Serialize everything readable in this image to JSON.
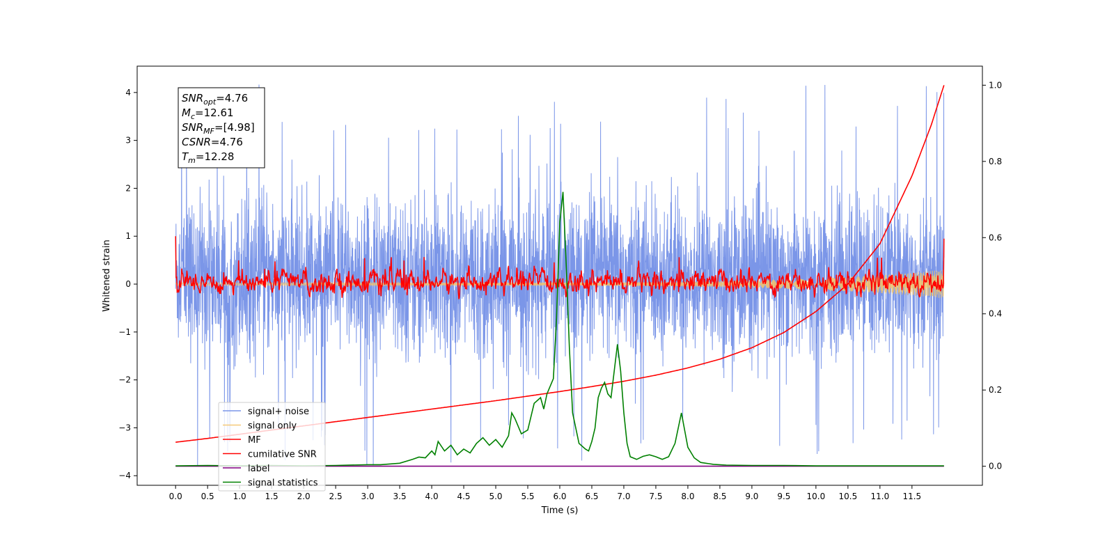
{
  "chart_data": {
    "type": "line",
    "title": "",
    "xlabel": "Time (s)",
    "ylabel": "Whitened strain",
    "xlim": [
      -0.6,
      12.6
    ],
    "ylim": [
      -4.2,
      4.55
    ],
    "y2lim": [
      -0.05,
      1.05
    ],
    "xticks": [
      0.0,
      0.5,
      1.0,
      1.5,
      2.0,
      2.5,
      3.0,
      3.5,
      4.0,
      4.5,
      5.0,
      5.5,
      6.0,
      6.5,
      7.0,
      7.5,
      8.0,
      8.5,
      9.0,
      9.5,
      10.0,
      10.5,
      11.0,
      11.5
    ],
    "xtick_labels": [
      "0.0",
      "0.5",
      "1.0",
      "1.5",
      "2.0",
      "2.5",
      "3.0",
      "3.5",
      "4.0",
      "4.5",
      "5.0",
      "5.5",
      "6.0",
      "6.5",
      "7.0",
      "7.5",
      "8.0",
      "8.5",
      "9.0",
      "9.5",
      "10.0",
      "10.5",
      "11.0",
      "11.5"
    ],
    "yticks": [
      4,
      3,
      2,
      1,
      0,
      -1,
      -2,
      -3,
      -4
    ],
    "ytick_labels": [
      "4",
      "3",
      "2",
      "1",
      "0",
      "−1",
      "−2",
      "−3",
      "−4"
    ],
    "y2ticks": [
      1.0,
      0.8,
      0.6,
      0.4,
      0.2,
      0.0
    ],
    "y2tick_labels": [
      "1.0",
      "0.8",
      "0.6",
      "0.4",
      "0.2",
      "0.0"
    ],
    "grid": false,
    "legend_placement": "lower-left",
    "annotation": {
      "lines": [
        {
          "base": "SNR",
          "sub": "opt",
          "value": "=4.76"
        },
        {
          "base": "M",
          "sub": "c",
          "value": "=12.61"
        },
        {
          "base": "SNR",
          "sub": "MF",
          "value": "=[4.98]"
        },
        {
          "base": "CSNR",
          "sub": "",
          "value": "=4.76"
        },
        {
          "base": "T",
          "sub": "m",
          "value": "=12.28"
        }
      ]
    },
    "series": [
      {
        "name": "signal+ noise",
        "color": "#7b96e8",
        "axis": "left",
        "style": "noise",
        "x_range": [
          0.0,
          12.0
        ],
        "y_band": [
          -1.3,
          1.6
        ],
        "y_extremes": [
          -3.8,
          4.2
        ]
      },
      {
        "name": "signal only",
        "color": "#f5c46a",
        "axis": "left",
        "style": "chirp",
        "x_range": [
          0.0,
          12.0
        ],
        "amplitude_start": 0.03,
        "amplitude_end": 0.3
      },
      {
        "name": "MF",
        "color": "#ff0000",
        "axis": "left",
        "style": "matched-filter",
        "x_range": [
          0.0,
          12.0
        ],
        "y_band": [
          -0.35,
          0.6
        ],
        "y_start": 1.0,
        "y_end": 0.95
      },
      {
        "name": "cumilative SNR",
        "color": "#ff0000",
        "axis": "right",
        "x": [
          0.0,
          0.5,
          1.0,
          1.5,
          2.0,
          2.5,
          3.0,
          3.5,
          4.0,
          4.5,
          5.0,
          5.5,
          6.0,
          6.5,
          7.0,
          7.5,
          8.0,
          8.5,
          9.0,
          9.5,
          10.0,
          10.5,
          11.0,
          11.5,
          11.8,
          12.0
        ],
        "values": [
          0.063,
          0.073,
          0.084,
          0.095,
          0.106,
          0.117,
          0.128,
          0.139,
          0.15,
          0.161,
          0.172,
          0.184,
          0.196,
          0.209,
          0.223,
          0.239,
          0.258,
          0.281,
          0.311,
          0.351,
          0.406,
          0.478,
          0.584,
          0.762,
          0.895,
          1.0
        ]
      },
      {
        "name": "label",
        "color": "#800080",
        "axis": "right",
        "x": [
          0.0,
          12.0
        ],
        "values": [
          0.0,
          0.0
        ]
      },
      {
        "name": "signal statistics",
        "color": "#008000",
        "axis": "right",
        "x": [
          0.0,
          0.5,
          1.0,
          1.5,
          2.0,
          2.5,
          3.0,
          3.2,
          3.5,
          3.7,
          3.8,
          3.9,
          4.0,
          4.05,
          4.1,
          4.2,
          4.3,
          4.4,
          4.5,
          4.6,
          4.7,
          4.8,
          4.9,
          5.0,
          5.1,
          5.2,
          5.25,
          5.3,
          5.4,
          5.5,
          5.6,
          5.7,
          5.75,
          5.8,
          5.9,
          5.95,
          6.0,
          6.05,
          6.1,
          6.15,
          6.2,
          6.3,
          6.4,
          6.45,
          6.5,
          6.55,
          6.6,
          6.65,
          6.7,
          6.75,
          6.8,
          6.9,
          6.95,
          7.0,
          7.05,
          7.1,
          7.2,
          7.3,
          7.4,
          7.5,
          7.6,
          7.7,
          7.8,
          7.9,
          7.95,
          8.0,
          8.1,
          8.2,
          8.4,
          8.6,
          9.0,
          9.5,
          10.0,
          11.0,
          12.0
        ],
        "values": [
          0.001,
          0.002,
          0.001,
          0.002,
          0.001,
          0.002,
          0.004,
          0.004,
          0.008,
          0.018,
          0.024,
          0.022,
          0.04,
          0.03,
          0.065,
          0.04,
          0.055,
          0.03,
          0.045,
          0.035,
          0.06,
          0.075,
          0.055,
          0.07,
          0.05,
          0.08,
          0.14,
          0.125,
          0.085,
          0.095,
          0.165,
          0.18,
          0.15,
          0.19,
          0.23,
          0.39,
          0.64,
          0.72,
          0.53,
          0.31,
          0.14,
          0.06,
          0.045,
          0.04,
          0.065,
          0.1,
          0.18,
          0.205,
          0.22,
          0.19,
          0.18,
          0.32,
          0.25,
          0.14,
          0.06,
          0.025,
          0.018,
          0.026,
          0.03,
          0.025,
          0.018,
          0.025,
          0.06,
          0.14,
          0.095,
          0.05,
          0.022,
          0.01,
          0.005,
          0.003,
          0.002,
          0.002,
          0.001,
          0.001,
          0.001
        ]
      }
    ]
  }
}
